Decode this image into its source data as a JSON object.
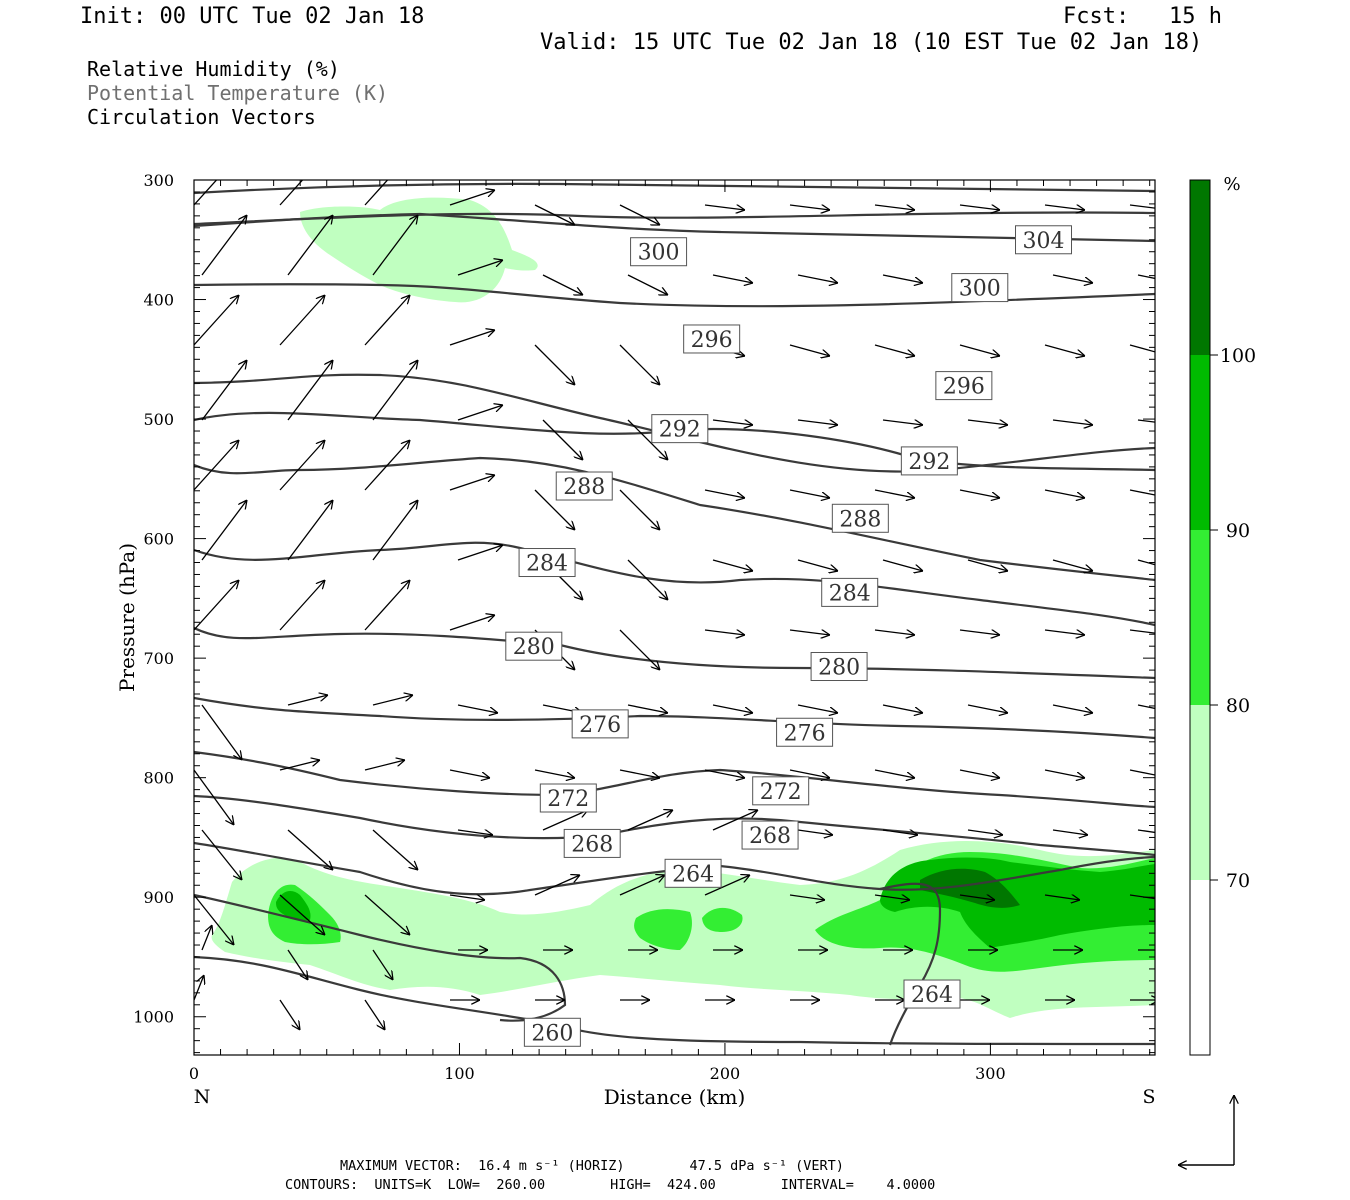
{
  "header": {
    "init": "Init: 00 UTC Tue 02 Jan 18",
    "fcst": "Fcst:   15 h",
    "valid": "Valid: 15 UTC Tue 02 Jan 18 (10 EST Tue 02 Jan 18)"
  },
  "legend": {
    "rh": "Relative Humidity (%)",
    "theta": "Potential Temperature (K)",
    "vectors": "Circulation Vectors"
  },
  "footer": {
    "max_vector": "MAXIMUM VECTOR:  16.4 m s⁻¹ (HORIZ)        47.5 dPa s⁻¹ (VERT)",
    "contours": "CONTOURS:  UNITS=K  LOW=  260.00        HIGH=  424.00        INTERVAL=    4.0000"
  },
  "colors": {
    "rh_70_80": "#c0ffc0",
    "rh_80_90": "#33ee33",
    "rh_90_100": "#00bb00",
    "rh_100": "#007700",
    "contour": "#3a3a3a",
    "vector": "#000000"
  },
  "chart_data": {
    "type": "cross-section",
    "xlabel": "Distance (km)",
    "ylabel": "Pressure (hPa)",
    "xlim": [
      0,
      362
    ],
    "ylim": [
      1032,
      300
    ],
    "x_ticks": [
      "0",
      "100",
      "200",
      "300"
    ],
    "y_ticks": [
      "300",
      "400",
      "500",
      "600",
      "700",
      "800",
      "900",
      "1000"
    ],
    "x_end_labels": {
      "left": "N",
      "right": "S"
    },
    "colorbar": {
      "unit": "%",
      "levels": [
        "70",
        "80",
        "90",
        "100"
      ]
    },
    "contour_labels": [
      {
        "label": "300",
        "x": 175,
        "p": 360
      },
      {
        "label": "304",
        "x": 320,
        "p": 350
      },
      {
        "label": "300",
        "x": 296,
        "p": 390
      },
      {
        "label": "296",
        "x": 195,
        "p": 433
      },
      {
        "label": "296",
        "x": 290,
        "p": 472
      },
      {
        "label": "292",
        "x": 183,
        "p": 508
      },
      {
        "label": "292",
        "x": 277,
        "p": 535
      },
      {
        "label": "288",
        "x": 147,
        "p": 556
      },
      {
        "label": "288",
        "x": 251,
        "p": 583
      },
      {
        "label": "284",
        "x": 133,
        "p": 620
      },
      {
        "label": "284",
        "x": 247,
        "p": 645
      },
      {
        "label": "280",
        "x": 128,
        "p": 690
      },
      {
        "label": "280",
        "x": 243,
        "p": 707
      },
      {
        "label": "276",
        "x": 153,
        "p": 755
      },
      {
        "label": "276",
        "x": 230,
        "p": 762
      },
      {
        "label": "272",
        "x": 141,
        "p": 817
      },
      {
        "label": "272",
        "x": 221,
        "p": 811
      },
      {
        "label": "268",
        "x": 150,
        "p": 855
      },
      {
        "label": "268",
        "x": 217,
        "p": 848
      },
      {
        "label": "264",
        "x": 188,
        "p": 880
      },
      {
        "label": "264",
        "x": 278,
        "p": 981
      },
      {
        "label": "260",
        "x": 135,
        "p": 1013
      }
    ]
  }
}
